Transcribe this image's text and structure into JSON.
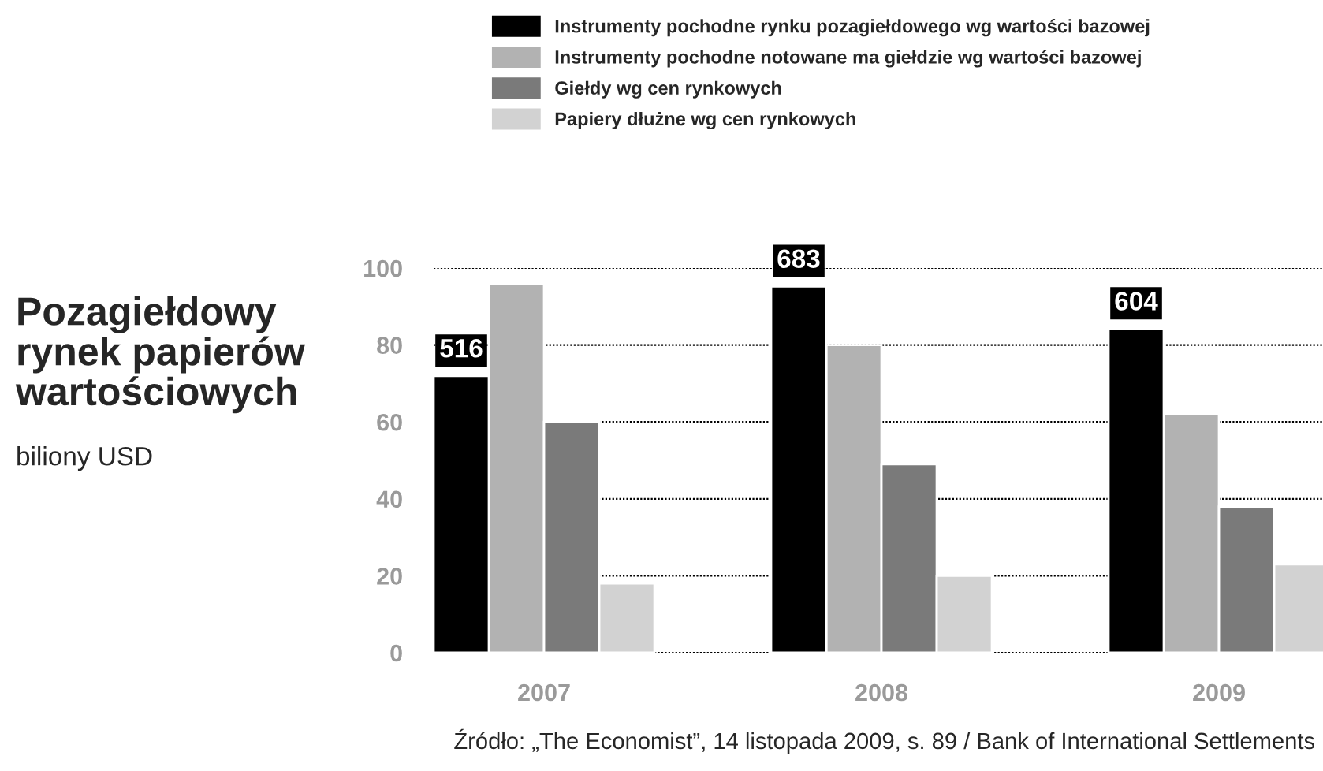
{
  "chart_data": {
    "type": "bar",
    "title": "Pozagiełdowy\nrynek papierów\nwartościowych",
    "subtitle": "biliony USD",
    "categories": [
      "2007",
      "2008",
      "2009"
    ],
    "series": [
      {
        "name": "Instrumenty pochodne rynku pozagiełdowego wg wartości bazowej",
        "color": "#000000",
        "values": [
          516,
          683,
          604
        ],
        "axis": "y2",
        "value_labels": [
          "516",
          "683",
          "604"
        ]
      },
      {
        "name": "Instrumenty pochodne notowane ma giełdzie wg wartości bazowej",
        "color": "#b2b2b2",
        "values": [
          96,
          80,
          62
        ]
      },
      {
        "name": "Giełdy wg cen rynkowych",
        "color": "#7a7a7a",
        "values": [
          60,
          49,
          38
        ]
      },
      {
        "name": "Papiery dłużne wg cen rynkowych",
        "color": "#d2d2d2",
        "values": [
          18,
          20,
          23
        ]
      }
    ],
    "ylim": [
      0,
      100
    ],
    "yticks": [
      0,
      20,
      40,
      60,
      80,
      100
    ],
    "grid": "y",
    "legend": "top",
    "annotations": [
      "Źródło: „The Economist”, 14 listopada 2009, s. 89 / Bank of International Settlements"
    ]
  }
}
